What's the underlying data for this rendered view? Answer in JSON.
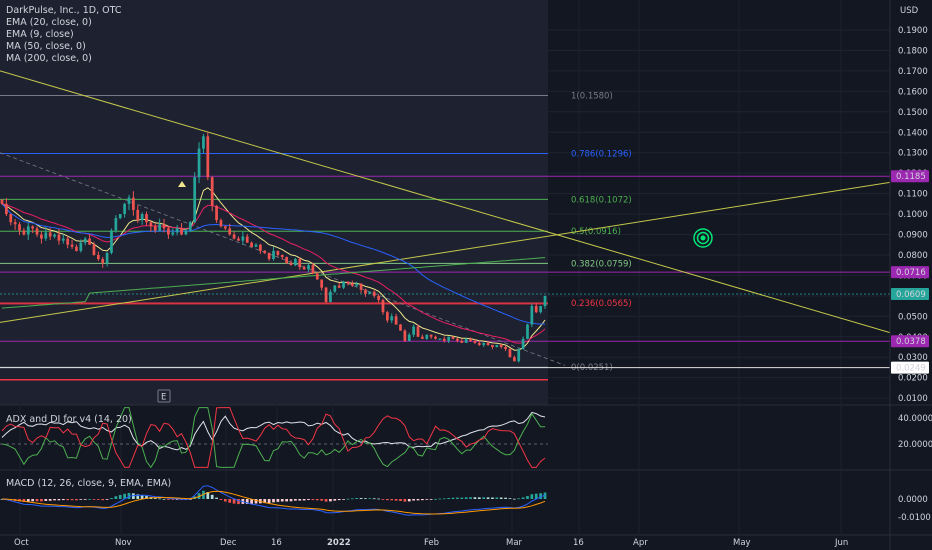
{
  "header": {
    "title": "DarkPulse, Inc., 1D, OTC",
    "indicators": [
      "EMA (20, close, 0)",
      "EMA (9, close)",
      "MA (50, close, 0)",
      "MA (200, close, 0)"
    ]
  },
  "currency": "USD",
  "panes": {
    "adx_label": "ADX and DI for v4 (14, 20)",
    "macd_label": "MACD (12, 26, close, 9, EMA, EMA)"
  },
  "event_marker": "E",
  "colors": {
    "background": "#131722",
    "up": "#26a69a",
    "down": "#ef5350",
    "fib_red": "#f23645",
    "fib_blue": "#2962ff",
    "purple": "#9c27b0",
    "trend_yellow": "#c5c84a",
    "target_green": "#00e676"
  },
  "chart_data": {
    "type": "candlestick",
    "price_axis": {
      "ticks": [
        "0.1900",
        "0.1800",
        "0.1700",
        "0.1600",
        "0.1500",
        "0.1400",
        "0.1300",
        "0.1200",
        "0.1100",
        "0.1000",
        "0.0900",
        "0.0800",
        "0.0700",
        "0.0600",
        "0.0500",
        "0.0400",
        "0.0300",
        "0.0200",
        "0.0100"
      ],
      "range": [
        0.005,
        0.2
      ]
    },
    "time_axis": {
      "labels": [
        "Oct",
        "Nov",
        "Dec",
        "16",
        "2022",
        "Feb",
        "Mar",
        "16",
        "Apr",
        "May",
        "Jun"
      ]
    },
    "fib_levels": [
      {
        "label": "1(0.1580)",
        "value": 0.158,
        "color": "#787b86"
      },
      {
        "label": "0.786(0.1296)",
        "value": 0.1296,
        "color": "#2962ff"
      },
      {
        "label": "0.618(0.1072)",
        "value": 0.1072,
        "color": "#4caf50"
      },
      {
        "label": "0.5(0.0916)",
        "value": 0.0916,
        "color": "#4caf50"
      },
      {
        "label": "0.382(0.0759)",
        "value": 0.0759,
        "color": "#81c784"
      },
      {
        "label": "0.236(0.0565)",
        "value": 0.0565,
        "color": "#f23645"
      },
      {
        "label": "0(0.0251)",
        "value": 0.0251,
        "color": "#787b86"
      }
    ],
    "price_tags": [
      {
        "label": "0.1185",
        "value": 0.1185,
        "color": "#9c27b0"
      },
      {
        "label": "0.0716",
        "value": 0.0716,
        "color": "#9c27b0"
      },
      {
        "label": "0.0609",
        "value": 0.0609,
        "color": "#26a69a"
      },
      {
        "label": "0.0378",
        "value": 0.0378,
        "color": "#9c27b0"
      },
      {
        "label": "0.0249",
        "value": 0.0249,
        "color": "#ffffff"
      }
    ],
    "adx_axis": {
      "ticks": [
        "40.0000",
        "20.0000"
      ]
    },
    "macd_axis": {
      "ticks": [
        "0.0000",
        "-0.0100"
      ]
    },
    "candles_close": [
      0.105,
      0.1,
      0.096,
      0.095,
      0.092,
      0.09,
      0.094,
      0.093,
      0.09,
      0.088,
      0.091,
      0.089,
      0.09,
      0.087,
      0.088,
      0.085,
      0.084,
      0.082,
      0.086,
      0.088,
      0.085,
      0.08,
      0.078,
      0.076,
      0.081,
      0.092,
      0.098,
      0.1,
      0.105,
      0.108,
      0.102,
      0.097,
      0.1,
      0.096,
      0.094,
      0.092,
      0.095,
      0.093,
      0.09,
      0.091,
      0.093,
      0.09,
      0.092,
      0.096,
      0.118,
      0.132,
      0.138,
      0.118,
      0.104,
      0.097,
      0.094,
      0.093,
      0.09,
      0.088,
      0.087,
      0.089,
      0.086,
      0.084,
      0.085,
      0.082,
      0.081,
      0.078,
      0.082,
      0.08,
      0.079,
      0.076,
      0.075,
      0.078,
      0.074,
      0.073,
      0.075,
      0.071,
      0.068,
      0.064,
      0.057,
      0.062,
      0.065,
      0.064,
      0.067,
      0.066,
      0.065,
      0.066,
      0.063,
      0.061,
      0.062,
      0.06,
      0.058,
      0.052,
      0.048,
      0.05,
      0.046,
      0.043,
      0.038,
      0.041,
      0.045,
      0.04,
      0.039,
      0.041,
      0.04,
      0.039,
      0.039,
      0.038,
      0.04,
      0.039,
      0.038,
      0.037,
      0.039,
      0.038,
      0.037,
      0.036,
      0.037,
      0.036,
      0.035,
      0.036,
      0.035,
      0.034,
      0.03,
      0.028,
      0.034,
      0.039,
      0.046,
      0.055,
      0.052,
      0.055,
      0.06
    ]
  }
}
